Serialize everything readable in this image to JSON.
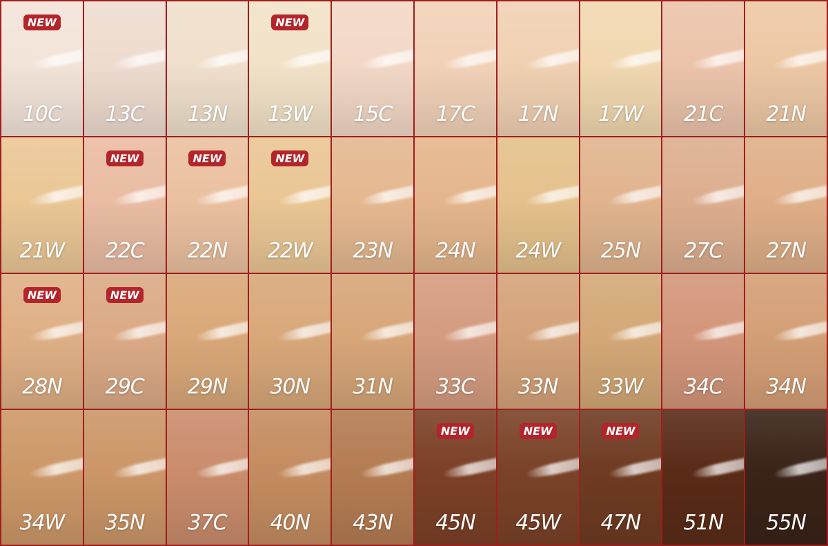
{
  "badge_label": "NEW",
  "border_color": "#a11d1d",
  "badge_color": "#b3252a",
  "shades": [
    {
      "name": "10C",
      "color": "#f3e4d9",
      "new": true
    },
    {
      "name": "13C",
      "color": "#efdcd0",
      "new": false
    },
    {
      "name": "13N",
      "color": "#f0e0cc",
      "new": false
    },
    {
      "name": "13W",
      "color": "#f2e3c8",
      "new": true
    },
    {
      "name": "15C",
      "color": "#f3d8c6",
      "new": false
    },
    {
      "name": "17C",
      "color": "#f2d2b8",
      "new": false
    },
    {
      "name": "17N",
      "color": "#f1d1b3",
      "new": false
    },
    {
      "name": "17W",
      "color": "#f1d8b0",
      "new": false
    },
    {
      "name": "21C",
      "color": "#ecc4ab",
      "new": false
    },
    {
      "name": "21N",
      "color": "#edc8a5",
      "new": false
    },
    {
      "name": "21W",
      "color": "#ebc796",
      "new": false
    },
    {
      "name": "22C",
      "color": "#eabca3",
      "new": true
    },
    {
      "name": "22N",
      "color": "#ebc1a0",
      "new": true
    },
    {
      "name": "22W",
      "color": "#eac694",
      "new": true
    },
    {
      "name": "23N",
      "color": "#e5b890",
      "new": false
    },
    {
      "name": "24N",
      "color": "#e5b68c",
      "new": false
    },
    {
      "name": "24W",
      "color": "#e5c18c",
      "new": false
    },
    {
      "name": "25N",
      "color": "#e1b48e",
      "new": false
    },
    {
      "name": "27C",
      "color": "#ddae8f",
      "new": false
    },
    {
      "name": "27N",
      "color": "#dfaf88",
      "new": false
    },
    {
      "name": "28N",
      "color": "#dfb085",
      "new": true
    },
    {
      "name": "29C",
      "color": "#dbaa86",
      "new": true
    },
    {
      "name": "29N",
      "color": "#d9a879",
      "new": false
    },
    {
      "name": "30N",
      "color": "#d8a87a",
      "new": false
    },
    {
      "name": "31N",
      "color": "#d7a679",
      "new": false
    },
    {
      "name": "33C",
      "color": "#d49c80",
      "new": false
    },
    {
      "name": "33N",
      "color": "#d4a37a",
      "new": false
    },
    {
      "name": "33W",
      "color": "#d4a877",
      "new": false
    },
    {
      "name": "34C",
      "color": "#d3967a",
      "new": false
    },
    {
      "name": "34N",
      "color": "#d49f76",
      "new": false
    },
    {
      "name": "34W",
      "color": "#cd9868",
      "new": false
    },
    {
      "name": "35N",
      "color": "#cc9668",
      "new": false
    },
    {
      "name": "37C",
      "color": "#ca8c6c",
      "new": false
    },
    {
      "name": "40N",
      "color": "#c48c60",
      "new": false
    },
    {
      "name": "43N",
      "color": "#b47c52",
      "new": false
    },
    {
      "name": "45N",
      "color": "#7c4027",
      "new": true
    },
    {
      "name": "45W",
      "color": "#7a4228",
      "new": true
    },
    {
      "name": "47N",
      "color": "#6f3b22",
      "new": true
    },
    {
      "name": "51N",
      "color": "#5a2b17",
      "new": false
    },
    {
      "name": "55N",
      "color": "#3a2318",
      "new": false
    }
  ]
}
